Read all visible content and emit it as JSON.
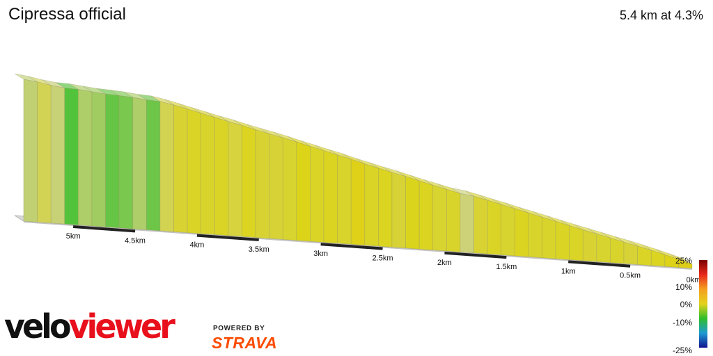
{
  "title": "Cipressa official",
  "summary": "5.4 km at 4.3%",
  "chart_data": {
    "type": "area",
    "title": "Cipressa official",
    "xlabel": "",
    "ylabel": "",
    "x_direction": "distance to summit, descending left to right",
    "total_distance_km": 5.4,
    "average_gradient_pct": 4.3,
    "tick_labels": [
      "5km",
      "4.5km",
      "4km",
      "3.5km",
      "3km",
      "2.5km",
      "2km",
      "1.5km",
      "1km",
      "0.5km",
      "0km"
    ],
    "segments_pct": [
      2.3,
      3.4,
      2.4,
      0.6,
      2.0,
      1.8,
      0.9,
      1.2,
      2.0,
      1.0,
      3.5,
      4.3,
      4.6,
      4.5,
      4.6,
      4.0,
      4.8,
      4.3,
      4.2,
      4.4,
      5.0,
      4.6,
      4.8,
      4.5,
      5.3,
      4.6,
      4.8,
      4.2,
      4.9,
      4.8,
      4.4,
      4.5,
      2.5,
      4.3,
      4.6,
      4.4,
      4.8,
      4.5,
      4.5,
      4.7,
      4.6,
      4.3,
      4.4,
      4.5,
      4.2,
      4.6,
      4.8,
      5.2,
      5.6
    ],
    "colour_legend": [
      "25%",
      "10%",
      "0%",
      "-10%",
      "-25%"
    ],
    "colour_scale": [
      "#7a0000",
      "#e8281c",
      "#f5a01e",
      "#e3d21e",
      "#2fbf2a",
      "#1e9bd2",
      "#12128f"
    ]
  },
  "branding": {
    "logo_part1": "velo",
    "logo_part2": "viewer",
    "powered_by": "POWERED BY",
    "strava": "STRAVA"
  }
}
